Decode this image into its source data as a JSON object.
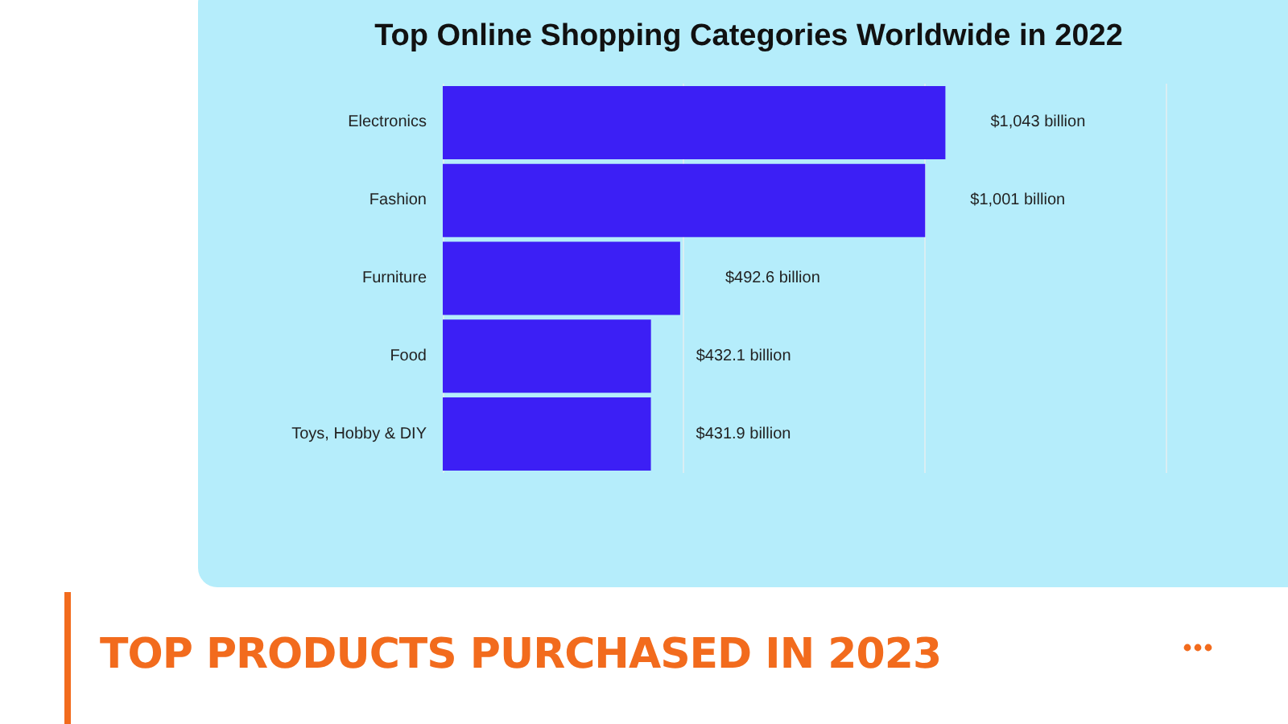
{
  "chart_data": {
    "type": "bar",
    "orientation": "horizontal",
    "title": "Top Online Shopping Categories Worldwide in 2022",
    "subtitle": "TOP PRODUCTS PURCHASED IN 2023",
    "categories": [
      "Electronics",
      "Fashion",
      "Furniture",
      "Food",
      "Toys, Hobby & DIY"
    ],
    "values": [
      1043,
      1001,
      492.6,
      432.1,
      431.9
    ],
    "value_labels": [
      "$1,043 billion",
      "$1,001 billion",
      "$492.6 billion",
      "$432.1 billion",
      "$431.9 billion"
    ],
    "color": "#3c1ff5",
    "xlim": [
      0,
      1500
    ],
    "xticks": [
      {
        "value": 0,
        "label": null
      },
      {
        "value": 500,
        "label": null
      },
      {
        "value": 1000,
        "label": null
      },
      {
        "value": 1500,
        "label": null
      }
    ],
    "grid": "x",
    "tick_labels": "y"
  }
}
